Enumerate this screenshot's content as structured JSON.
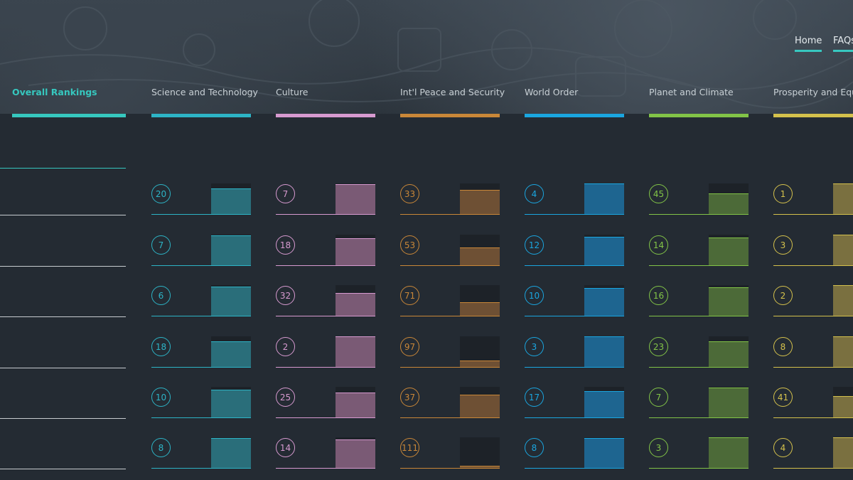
{
  "nav": {
    "home": "Home",
    "faqs": "FAQs"
  },
  "columns": [
    {
      "title": "Overall Rankings",
      "color": "#36c8bf",
      "active": true,
      "ranks": []
    },
    {
      "title": "Science and Technology",
      "color": "#2db4c6",
      "fill": "#2a6e7a",
      "ranks": [
        "20",
        "7",
        "6",
        "18",
        "10",
        "8"
      ],
      "scores": [
        0.85,
        0.98,
        0.95,
        0.84,
        0.9,
        0.98
      ]
    },
    {
      "title": "Culture",
      "color": "#d79ad0",
      "fill": "#7a5a75",
      "ranks": [
        "7",
        "18",
        "32",
        "2",
        "25",
        "14"
      ],
      "scores": [
        0.98,
        0.89,
        0.75,
        1.0,
        0.82,
        0.93
      ]
    },
    {
      "title": "Int'l Peace and Security",
      "color": "#c98738",
      "fill": "#6e5034",
      "ranks": [
        "33",
        "53",
        "71",
        "97",
        "37",
        "111"
      ],
      "scores": [
        0.8,
        0.6,
        0.45,
        0.22,
        0.75,
        0.1
      ]
    },
    {
      "title": "World Order",
      "color": "#1aa6e0",
      "fill": "#1e6590",
      "ranks": [
        "4",
        "12",
        "10",
        "3",
        "17",
        "8"
      ],
      "scores": [
        1.0,
        0.93,
        0.92,
        1.0,
        0.87,
        0.98
      ]
    },
    {
      "title": "Planet and Climate",
      "color": "#82c447",
      "fill": "#4c6a38",
      "ranks": [
        "45",
        "14",
        "16",
        "23",
        "7",
        "3"
      ],
      "scores": [
        0.68,
        0.9,
        0.93,
        0.85,
        0.98,
        1.0
      ]
    },
    {
      "title": "Prosperity and Equality",
      "color": "#d4c14c",
      "fill": "#7a7040",
      "ranks": [
        "1",
        "3",
        "2",
        "8",
        "41",
        "4"
      ],
      "scores": [
        1.0,
        1.0,
        1.0,
        1.0,
        0.7,
        1.0
      ]
    }
  ]
}
